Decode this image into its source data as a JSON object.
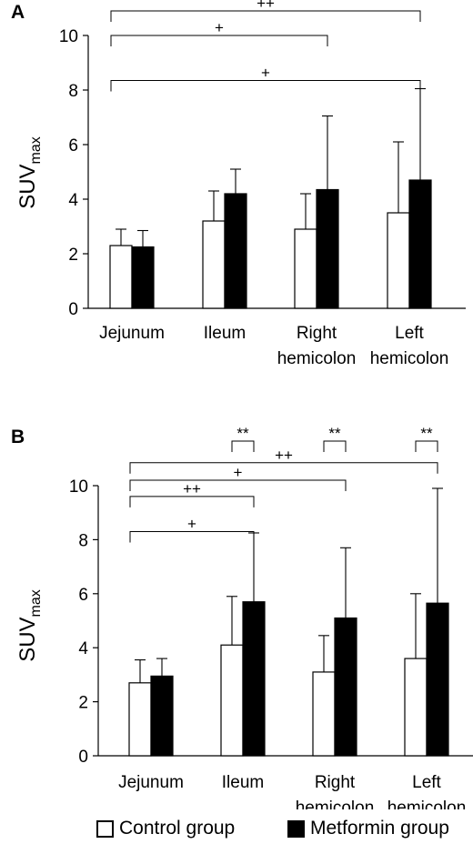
{
  "legend": {
    "control_label": "Control group",
    "metformin_label": "Metformin group",
    "control_color": "#ffffff",
    "metformin_color": "#000000"
  },
  "chart_data": [
    {
      "type": "bar",
      "panel": "A",
      "ylabel": "SUV",
      "ylabel_sub": "max",
      "ylim": [
        0,
        10
      ],
      "yticks": [
        "0",
        "2",
        "4",
        "6",
        "8",
        "10"
      ],
      "categories": [
        {
          "line1": "Jejunum",
          "line2": ""
        },
        {
          "line1": "Ileum",
          "line2": ""
        },
        {
          "line1": "Right",
          "line2": "hemicolon"
        },
        {
          "line1": "Left",
          "line2": "hemicolon"
        }
      ],
      "series": [
        {
          "name": "Control group",
          "values": [
            2.3,
            3.2,
            2.9,
            3.5
          ],
          "errors": [
            0.6,
            1.1,
            1.3,
            2.6
          ]
        },
        {
          "name": "Metformin group",
          "values": [
            2.25,
            4.2,
            4.35,
            4.7
          ],
          "errors": [
            0.6,
            0.9,
            2.7,
            3.35
          ]
        }
      ],
      "significance": [
        {
          "label": "++",
          "from": "Jejunum",
          "to": "Left hemicolon",
          "level": 10.9
        },
        {
          "label": "+",
          "from": "Jejunum",
          "to": "Right hemicolon",
          "level": 10.0
        },
        {
          "label": "+",
          "from": "Jejunum",
          "to": "Left hemicolon",
          "level": 8.35
        }
      ]
    },
    {
      "type": "bar",
      "panel": "B",
      "ylabel": "SUV",
      "ylabel_sub": "max",
      "ylim": [
        0,
        10
      ],
      "yticks": [
        "0",
        "2",
        "4",
        "6",
        "8",
        "10"
      ],
      "categories": [
        {
          "line1": "Jejunum",
          "line2": ""
        },
        {
          "line1": "Ileum",
          "line2": ""
        },
        {
          "line1": "Right",
          "line2": "hemicolon"
        },
        {
          "line1": "Left",
          "line2": "hemicolon"
        }
      ],
      "series": [
        {
          "name": "Control group",
          "values": [
            2.7,
            4.1,
            3.1,
            3.6
          ],
          "errors": [
            0.85,
            1.8,
            1.35,
            2.4
          ]
        },
        {
          "name": "Metformin group",
          "values": [
            2.95,
            5.7,
            5.1,
            5.65
          ],
          "errors": [
            0.65,
            2.55,
            2.6,
            4.25
          ]
        }
      ],
      "significance": [
        {
          "label": "**",
          "from": "Ileum",
          "to": "Ileum",
          "level": 11.65
        },
        {
          "label": "**",
          "from": "Right hemicolon",
          "to": "Right hemicolon",
          "level": 11.65
        },
        {
          "label": "**",
          "from": "Left hemicolon",
          "to": "Left hemicolon",
          "level": 11.65
        },
        {
          "label": "++",
          "from": "Jejunum",
          "to": "Left hemicolon",
          "level": 10.85
        },
        {
          "label": "+",
          "from": "Jejunum",
          "to": "Right hemicolon",
          "level": 10.2
        },
        {
          "label": "++",
          "from": "Jejunum",
          "to": "Ileum",
          "level": 9.6
        },
        {
          "label": "+",
          "from": "Jejunum",
          "to": "Ileum",
          "level": 8.3
        }
      ]
    }
  ]
}
